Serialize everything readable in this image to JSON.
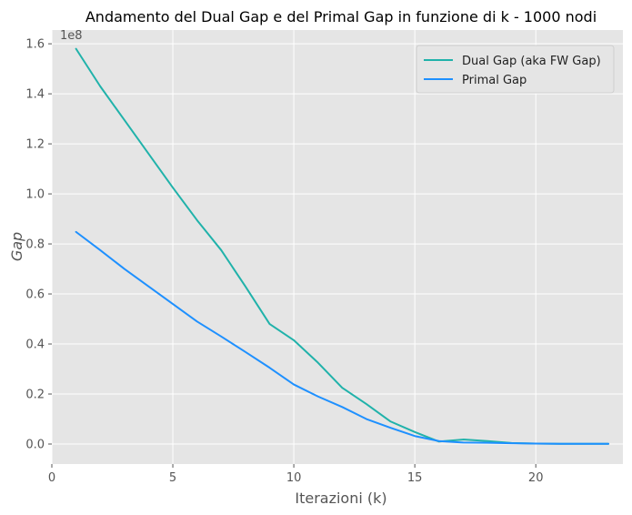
{
  "chart_data": {
    "type": "line",
    "title": "Andamento del Dual Gap e del Primal Gap in funzione di k - 1000 nodi",
    "xlabel": "Iterazioni (k)",
    "ylabel": "Gap",
    "offset_label": "1e8",
    "xlim": [
      0,
      23.6
    ],
    "ylim": [
      -0.08,
      1.655
    ],
    "xticks": [
      0,
      5,
      10,
      15,
      20
    ],
    "yticks": [
      0.0,
      0.2,
      0.4,
      0.6,
      0.8,
      1.0,
      1.2,
      1.4,
      1.6
    ],
    "xtick_labels": [
      "0",
      "5",
      "10",
      "15",
      "20"
    ],
    "ytick_labels": [
      "0.0",
      "0.2",
      "0.4",
      "0.6",
      "0.8",
      "1.0",
      "1.2",
      "1.4",
      "1.6"
    ],
    "grid": true,
    "legend_position": "top-right",
    "x": [
      1,
      2,
      3,
      4,
      5,
      6,
      7,
      8,
      9,
      10,
      11,
      12,
      13,
      14,
      15,
      16,
      17,
      18,
      19,
      20,
      21,
      22,
      23
    ],
    "series": [
      {
        "name": "Dual Gap (aka FW Gap)",
        "color": "#20b2aa",
        "values": [
          1.58,
          1.43,
          1.295,
          1.16,
          1.025,
          0.895,
          0.775,
          0.63,
          0.48,
          0.415,
          0.325,
          0.225,
          0.16,
          0.09,
          0.048,
          0.01,
          0.018,
          0.012,
          0.004,
          0.002,
          0.001,
          0.001,
          0.001
        ]
      },
      {
        "name": "Primal Gap",
        "color": "#1e90ff",
        "values": [
          0.848,
          0.775,
          0.7,
          0.63,
          0.56,
          0.49,
          0.43,
          0.368,
          0.305,
          0.238,
          0.19,
          0.148,
          0.1,
          0.065,
          0.032,
          0.012,
          0.006,
          0.005,
          0.003,
          0.002,
          0.001,
          0.001,
          0.001
        ]
      }
    ]
  }
}
